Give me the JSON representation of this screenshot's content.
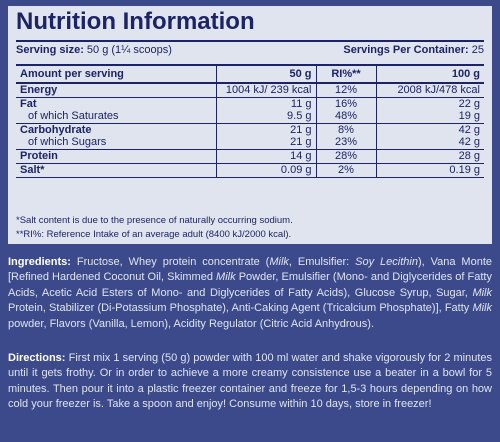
{
  "title": "Nutrition Information",
  "serving": {
    "size_label": "Serving size:",
    "size_value": "50 g (1¼ scoops)",
    "per_container_label": "Servings Per Container:",
    "per_container_value": "25"
  },
  "table": {
    "headers": [
      "Amount per serving",
      "50 g",
      "RI%**",
      "100 g"
    ],
    "rows": [
      {
        "label": "Energy",
        "v50": "1004 kJ/ 239 kcal",
        "ri": "12%",
        "v100": "2008 kJ/478 kcal"
      },
      {
        "label": "Fat",
        "v50": "11 g",
        "ri": "16%",
        "v100": "22 g"
      },
      {
        "label": "of which Saturates",
        "v50": "9.5 g",
        "ri": "48%",
        "v100": "19 g"
      },
      {
        "label": "Carbohydrate",
        "v50": "21 g",
        "ri": "8%",
        "v100": "42 g"
      },
      {
        "label": "of which Sugars",
        "v50": "21 g",
        "ri": "23%",
        "v100": "42 g"
      },
      {
        "label": "Protein",
        "v50": "14 g",
        "ri": "28%",
        "v100": "28 g"
      },
      {
        "label": "Salt*",
        "v50": "0.09 g",
        "ri": "2%",
        "v100": "0.19 g"
      }
    ]
  },
  "notes": {
    "salt": "*Salt content is due to the presence of naturally occurring sodium.",
    "ri": "**RI%: Reference Intake of an average adult (8400 kJ/2000 kcal)."
  },
  "ingredients": {
    "label": "Ingredients:",
    "p1": " Fructose, Whey protein concentrate (",
    "milk1": "Milk",
    "p2": ", Emulsifier: ",
    "soy": "Soy Lecithin",
    "p3": "), Vana Monte [Refined Hardened Coconut Oil, Skimmed ",
    "milk2": "Milk",
    "p4": " Powder, Emulsifier (Mono- and Diglycerides of Fatty Acids, Acetic Acid Esters of Mono- and Diglycerides of Fatty Acids), Glucose Syrup, Sugar, ",
    "milk3": "Milk",
    "p5": " Protein, Stabilizer (Di-Potassium Phosphate), Anti-Caking Agent (Tricalcium Phosphate)], Fatty ",
    "milk4": "Milk",
    "p6": " powder, Flavors (Vanilla, Lemon), Acidity Regulator (Citric Acid Anhydrous)."
  },
  "directions": {
    "label": "Directions:",
    "text": " First mix 1 serving (50 g) powder with 100 ml water and shake vigorously for 2 minutes until it gets frothy. Or in order to achieve a more creamy consistence use a beater in a bowl for 5 minutes. Then pour it into a plastic freezer container and freeze for 1,5-3 hours depending on how cold your freezer is. Take a spoon and enjoy! Consume within 10 days, store in freezer!"
  },
  "colors": {
    "background": "#3c4a8c",
    "panel": "#dfe4ef",
    "ink": "#1c2466"
  }
}
